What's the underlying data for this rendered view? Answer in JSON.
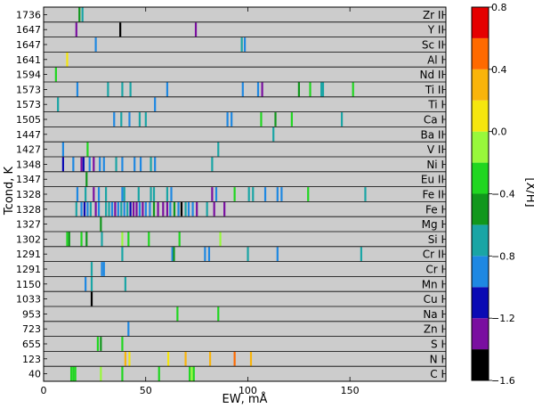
{
  "chart_data": {
    "type": "heatmap",
    "xlabel": "EW, mÅ",
    "ylabel": "Tcond, K",
    "xlim": [
      0,
      197
    ],
    "xticks": [
      0,
      50,
      100,
      150
    ],
    "row_background": "#cccccc",
    "rows": [
      {
        "tcond": "1736",
        "species": "Zr II",
        "lines": [
          {
            "ew": 17.5,
            "xh": -0.6
          },
          {
            "ew": 19,
            "xh": -0.7
          }
        ]
      },
      {
        "tcond": "1647",
        "species": "Y II",
        "lines": [
          {
            "ew": 16,
            "xh": -1.3
          },
          {
            "ew": 37.5,
            "xh": -1.5
          },
          {
            "ew": 74.5,
            "xh": -1.3
          }
        ]
      },
      {
        "tcond": "1647",
        "species": "Sc II",
        "lines": [
          {
            "ew": 25.5,
            "xh": -1.0
          },
          {
            "ew": 97,
            "xh": -0.7
          },
          {
            "ew": 98.5,
            "xh": -0.9
          }
        ]
      },
      {
        "tcond": "1641",
        "species": "Al I",
        "lines": [
          {
            "ew": 11.5,
            "xh": 0.1
          }
        ]
      },
      {
        "tcond": "1594",
        "species": "Nd II",
        "lines": [
          {
            "ew": 6,
            "xh": -0.4
          }
        ]
      },
      {
        "tcond": "1573",
        "species": "Ti II",
        "lines": [
          {
            "ew": 16.5,
            "xh": -0.9
          },
          {
            "ew": 31.5,
            "xh": -0.7
          },
          {
            "ew": 38.5,
            "xh": -0.8
          },
          {
            "ew": 42.5,
            "xh": -0.7
          },
          {
            "ew": 60.5,
            "xh": -0.9
          },
          {
            "ew": 97.5,
            "xh": -0.9
          },
          {
            "ew": 105,
            "xh": -0.9
          },
          {
            "ew": 107,
            "xh": -1.3
          },
          {
            "ew": 125,
            "xh": -0.5
          },
          {
            "ew": 130.5,
            "xh": -0.4
          },
          {
            "ew": 136,
            "xh": -0.8
          },
          {
            "ew": 136.8,
            "xh": -0.8
          },
          {
            "ew": 151.5,
            "xh": -0.4
          }
        ]
      },
      {
        "tcond": "1573",
        "species": "Ti I",
        "lines": [
          {
            "ew": 7,
            "xh": -0.7
          },
          {
            "ew": 54.5,
            "xh": -0.9
          }
        ]
      },
      {
        "tcond": "1505",
        "species": "Ca I",
        "lines": [
          {
            "ew": 34.5,
            "xh": -0.9
          },
          {
            "ew": 38,
            "xh": -0.8
          },
          {
            "ew": 42,
            "xh": -1.0
          },
          {
            "ew": 47,
            "xh": -0.8
          },
          {
            "ew": 50,
            "xh": -0.7
          },
          {
            "ew": 90,
            "xh": -0.9
          },
          {
            "ew": 92,
            "xh": -0.9
          },
          {
            "ew": 106.5,
            "xh": -0.4
          },
          {
            "ew": 113.5,
            "xh": -0.5
          },
          {
            "ew": 121.5,
            "xh": -0.3
          },
          {
            "ew": 146,
            "xh": -0.7
          }
        ]
      },
      {
        "tcond": "1447",
        "species": "Ba II",
        "lines": [
          {
            "ew": 112.5,
            "xh": -0.7
          }
        ]
      },
      {
        "tcond": "1427",
        "species": "V II",
        "lines": [
          {
            "ew": 9.5,
            "xh": -0.9
          },
          {
            "ew": 21.5,
            "xh": -0.4
          },
          {
            "ew": 85.5,
            "xh": -0.7
          }
        ]
      },
      {
        "tcond": "1348",
        "species": "Ni I",
        "lines": [
          {
            "ew": 9.5,
            "xh": -1.2
          },
          {
            "ew": 14.5,
            "xh": -0.9
          },
          {
            "ew": 18.5,
            "xh": -1.3
          },
          {
            "ew": 19.5,
            "xh": -1.2
          },
          {
            "ew": 22.5,
            "xh": -1.0
          },
          {
            "ew": 24.5,
            "xh": -1.3
          },
          {
            "ew": 27.5,
            "xh": -0.9
          },
          {
            "ew": 29.5,
            "xh": -0.9
          },
          {
            "ew": 35.5,
            "xh": -0.7
          },
          {
            "ew": 38.5,
            "xh": -1.0
          },
          {
            "ew": 44.5,
            "xh": -0.9
          },
          {
            "ew": 47.5,
            "xh": -1.0
          },
          {
            "ew": 52.5,
            "xh": -0.8
          },
          {
            "ew": 54.5,
            "xh": -0.9
          },
          {
            "ew": 82.5,
            "xh": -0.7
          }
        ]
      },
      {
        "tcond": "1347",
        "species": "Eu II",
        "lines": [
          {
            "ew": 21,
            "xh": -0.5
          }
        ]
      },
      {
        "tcond": "1328",
        "species": "Fe II",
        "lines": [
          {
            "ew": 16.5,
            "xh": -0.9
          },
          {
            "ew": 20.5,
            "xh": -0.8
          },
          {
            "ew": 24.5,
            "xh": -1.3
          },
          {
            "ew": 27,
            "xh": -1.0
          },
          {
            "ew": 30.5,
            "xh": -0.8
          },
          {
            "ew": 38.5,
            "xh": -1.0
          },
          {
            "ew": 39.5,
            "xh": -0.8
          },
          {
            "ew": 46.5,
            "xh": -0.7
          },
          {
            "ew": 52.5,
            "xh": -0.7
          },
          {
            "ew": 54,
            "xh": -0.8
          },
          {
            "ew": 60.5,
            "xh": -0.7
          },
          {
            "ew": 62.5,
            "xh": -0.9
          },
          {
            "ew": 82.5,
            "xh": -1.3
          },
          {
            "ew": 84.5,
            "xh": -0.9
          },
          {
            "ew": 93.5,
            "xh": -0.4
          },
          {
            "ew": 100.5,
            "xh": -0.7
          },
          {
            "ew": 102.5,
            "xh": -0.7
          },
          {
            "ew": 108.5,
            "xh": -0.9
          },
          {
            "ew": 114.5,
            "xh": -1.0
          },
          {
            "ew": 116.5,
            "xh": -0.9
          },
          {
            "ew": 129.5,
            "xh": -0.4
          },
          {
            "ew": 157.5,
            "xh": -0.7
          }
        ]
      },
      {
        "tcond": "1328",
        "species": "Fe I",
        "lines": [
          {
            "ew": 16,
            "xh": -0.8
          },
          {
            "ew": 18.5,
            "xh": -1.0
          },
          {
            "ew": 20,
            "xh": -1.2
          },
          {
            "ew": 21.5,
            "xh": -0.9
          },
          {
            "ew": 23,
            "xh": -0.8
          },
          {
            "ew": 25.5,
            "xh": -1.3
          },
          {
            "ew": 27,
            "xh": -0.9
          },
          {
            "ew": 30.5,
            "xh": -0.8
          },
          {
            "ew": 32,
            "xh": -0.7
          },
          {
            "ew": 33.5,
            "xh": -1.0
          },
          {
            "ew": 35,
            "xh": -1.3
          },
          {
            "ew": 36.5,
            "xh": -0.9
          },
          {
            "ew": 38,
            "xh": -0.8
          },
          {
            "ew": 39.5,
            "xh": -1.0
          },
          {
            "ew": 41,
            "xh": -0.7
          },
          {
            "ew": 42.5,
            "xh": -1.2
          },
          {
            "ew": 44,
            "xh": -1.3
          },
          {
            "ew": 45.5,
            "xh": -1.3
          },
          {
            "ew": 47,
            "xh": -1.0
          },
          {
            "ew": 48.5,
            "xh": -1.3
          },
          {
            "ew": 50,
            "xh": -0.9
          },
          {
            "ew": 52,
            "xh": -1.0
          },
          {
            "ew": 54,
            "xh": -0.6
          },
          {
            "ew": 56,
            "xh": -1.3
          },
          {
            "ew": 58.5,
            "xh": -1.4
          },
          {
            "ew": 60.5,
            "xh": -1.3
          },
          {
            "ew": 62,
            "xh": -0.9
          },
          {
            "ew": 64,
            "xh": -0.5
          },
          {
            "ew": 66,
            "xh": -1.0
          },
          {
            "ew": 67.5,
            "xh": -1.5
          },
          {
            "ew": 69.5,
            "xh": -0.8
          },
          {
            "ew": 71,
            "xh": -1.0
          },
          {
            "ew": 73,
            "xh": -0.9
          },
          {
            "ew": 75,
            "xh": -1.3
          },
          {
            "ew": 80,
            "xh": -0.8
          },
          {
            "ew": 83.5,
            "xh": -1.3
          },
          {
            "ew": 88.5,
            "xh": -1.3
          }
        ]
      },
      {
        "tcond": "1327",
        "species": "Mg I",
        "lines": [
          {
            "ew": 28,
            "xh": -0.5
          }
        ]
      },
      {
        "tcond": "1302",
        "species": "Si I",
        "lines": [
          {
            "ew": 11.5,
            "xh": -0.4
          },
          {
            "ew": 12.5,
            "xh": -0.5
          },
          {
            "ew": 18.5,
            "xh": -0.4
          },
          {
            "ew": 21,
            "xh": -0.5
          },
          {
            "ew": 28.5,
            "xh": -0.7
          },
          {
            "ew": 38.5,
            "xh": -0.2
          },
          {
            "ew": 41.5,
            "xh": -0.4
          },
          {
            "ew": 51.5,
            "xh": -0.3
          },
          {
            "ew": 66.5,
            "xh": -0.3
          },
          {
            "ew": 86.5,
            "xh": -0.1
          }
        ]
      },
      {
        "tcond": "1291",
        "species": "Cr II",
        "lines": [
          {
            "ew": 38.5,
            "xh": -0.7
          },
          {
            "ew": 63,
            "xh": -0.9
          },
          {
            "ew": 63.8,
            "xh": -0.5
          },
          {
            "ew": 79,
            "xh": -0.9
          },
          {
            "ew": 81,
            "xh": -0.9
          },
          {
            "ew": 100,
            "xh": -0.7
          },
          {
            "ew": 114.5,
            "xh": -1.0
          },
          {
            "ew": 155.5,
            "xh": -0.7
          }
        ]
      },
      {
        "tcond": "1291",
        "species": "Cr I",
        "lines": [
          {
            "ew": 23.5,
            "xh": -0.7
          },
          {
            "ew": 28.5,
            "xh": -1.0
          },
          {
            "ew": 29.5,
            "xh": -0.9
          }
        ]
      },
      {
        "tcond": "1150",
        "species": "Mn I",
        "lines": [
          {
            "ew": 20.5,
            "xh": -0.9
          },
          {
            "ew": 23.5,
            "xh": -0.8
          },
          {
            "ew": 40,
            "xh": -0.7
          }
        ]
      },
      {
        "tcond": "1033",
        "species": "Cu I",
        "lines": [
          {
            "ew": 23.5,
            "xh": -1.5
          }
        ]
      },
      {
        "tcond": "953",
        "species": "Na I",
        "lines": [
          {
            "ew": 65.5,
            "xh": -0.4
          },
          {
            "ew": 85.5,
            "xh": -0.4
          }
        ]
      },
      {
        "tcond": "723",
        "species": "Zn I",
        "lines": [
          {
            "ew": 41.5,
            "xh": -0.9
          }
        ]
      },
      {
        "tcond": "655",
        "species": "S I",
        "lines": [
          {
            "ew": 26.5,
            "xh": -0.4
          },
          {
            "ew": 28,
            "xh": -0.5
          },
          {
            "ew": 38.5,
            "xh": -0.4
          }
        ]
      },
      {
        "tcond": "123",
        "species": "N I",
        "lines": [
          {
            "ew": 40,
            "xh": 0.2
          },
          {
            "ew": 42,
            "xh": 0.1
          },
          {
            "ew": 61,
            "xh": 0.1
          },
          {
            "ew": 69.5,
            "xh": 0.2
          },
          {
            "ew": 81.5,
            "xh": 0.2
          },
          {
            "ew": 93.5,
            "xh": 0.5
          },
          {
            "ew": 101.5,
            "xh": 0.2
          }
        ]
      },
      {
        "tcond": "40",
        "species": "C I",
        "lines": [
          {
            "ew": 13.5,
            "xh": -0.4
          },
          {
            "ew": 14.5,
            "xh": -0.4
          },
          {
            "ew": 15.5,
            "xh": -0.3
          },
          {
            "ew": 28,
            "xh": -0.1
          },
          {
            "ew": 38.5,
            "xh": -0.4
          },
          {
            "ew": 56.5,
            "xh": -0.3
          },
          {
            "ew": 71.5,
            "xh": -0.3
          },
          {
            "ew": 72.5,
            "xh": -0.2
          },
          {
            "ew": 73.5,
            "xh": -0.3
          }
        ]
      }
    ],
    "colorbar": {
      "label": "[X/H]",
      "min": -1.6,
      "max": 0.8,
      "ticks": [
        "0.8",
        "0.4",
        "0.0",
        "−0.4",
        "−0.8",
        "−1.2",
        "−1.6"
      ],
      "bins": [
        {
          "from": -1.6,
          "to": -1.4,
          "color": "#000000"
        },
        {
          "from": -1.4,
          "to": -1.2,
          "color": "#7a0fa0"
        },
        {
          "from": -1.2,
          "to": -1.0,
          "color": "#0a0ab4"
        },
        {
          "from": -1.0,
          "to": -0.8,
          "color": "#1e88e2"
        },
        {
          "from": -0.8,
          "to": -0.6,
          "color": "#1aa5a5"
        },
        {
          "from": -0.6,
          "to": -0.4,
          "color": "#11971c"
        },
        {
          "from": -0.4,
          "to": -0.2,
          "color": "#20d620"
        },
        {
          "from": -0.2,
          "to": 0.0,
          "color": "#98f83b"
        },
        {
          "from": 0.0,
          "to": 0.2,
          "color": "#f5e60e"
        },
        {
          "from": 0.2,
          "to": 0.4,
          "color": "#f9b40a"
        },
        {
          "from": 0.4,
          "to": 0.6,
          "color": "#ff6a00"
        },
        {
          "from": 0.6,
          "to": 0.8,
          "color": "#e50000"
        },
        {
          "from": 0.8,
          "to": 1.0,
          "color": "#cccccc"
        }
      ]
    }
  }
}
